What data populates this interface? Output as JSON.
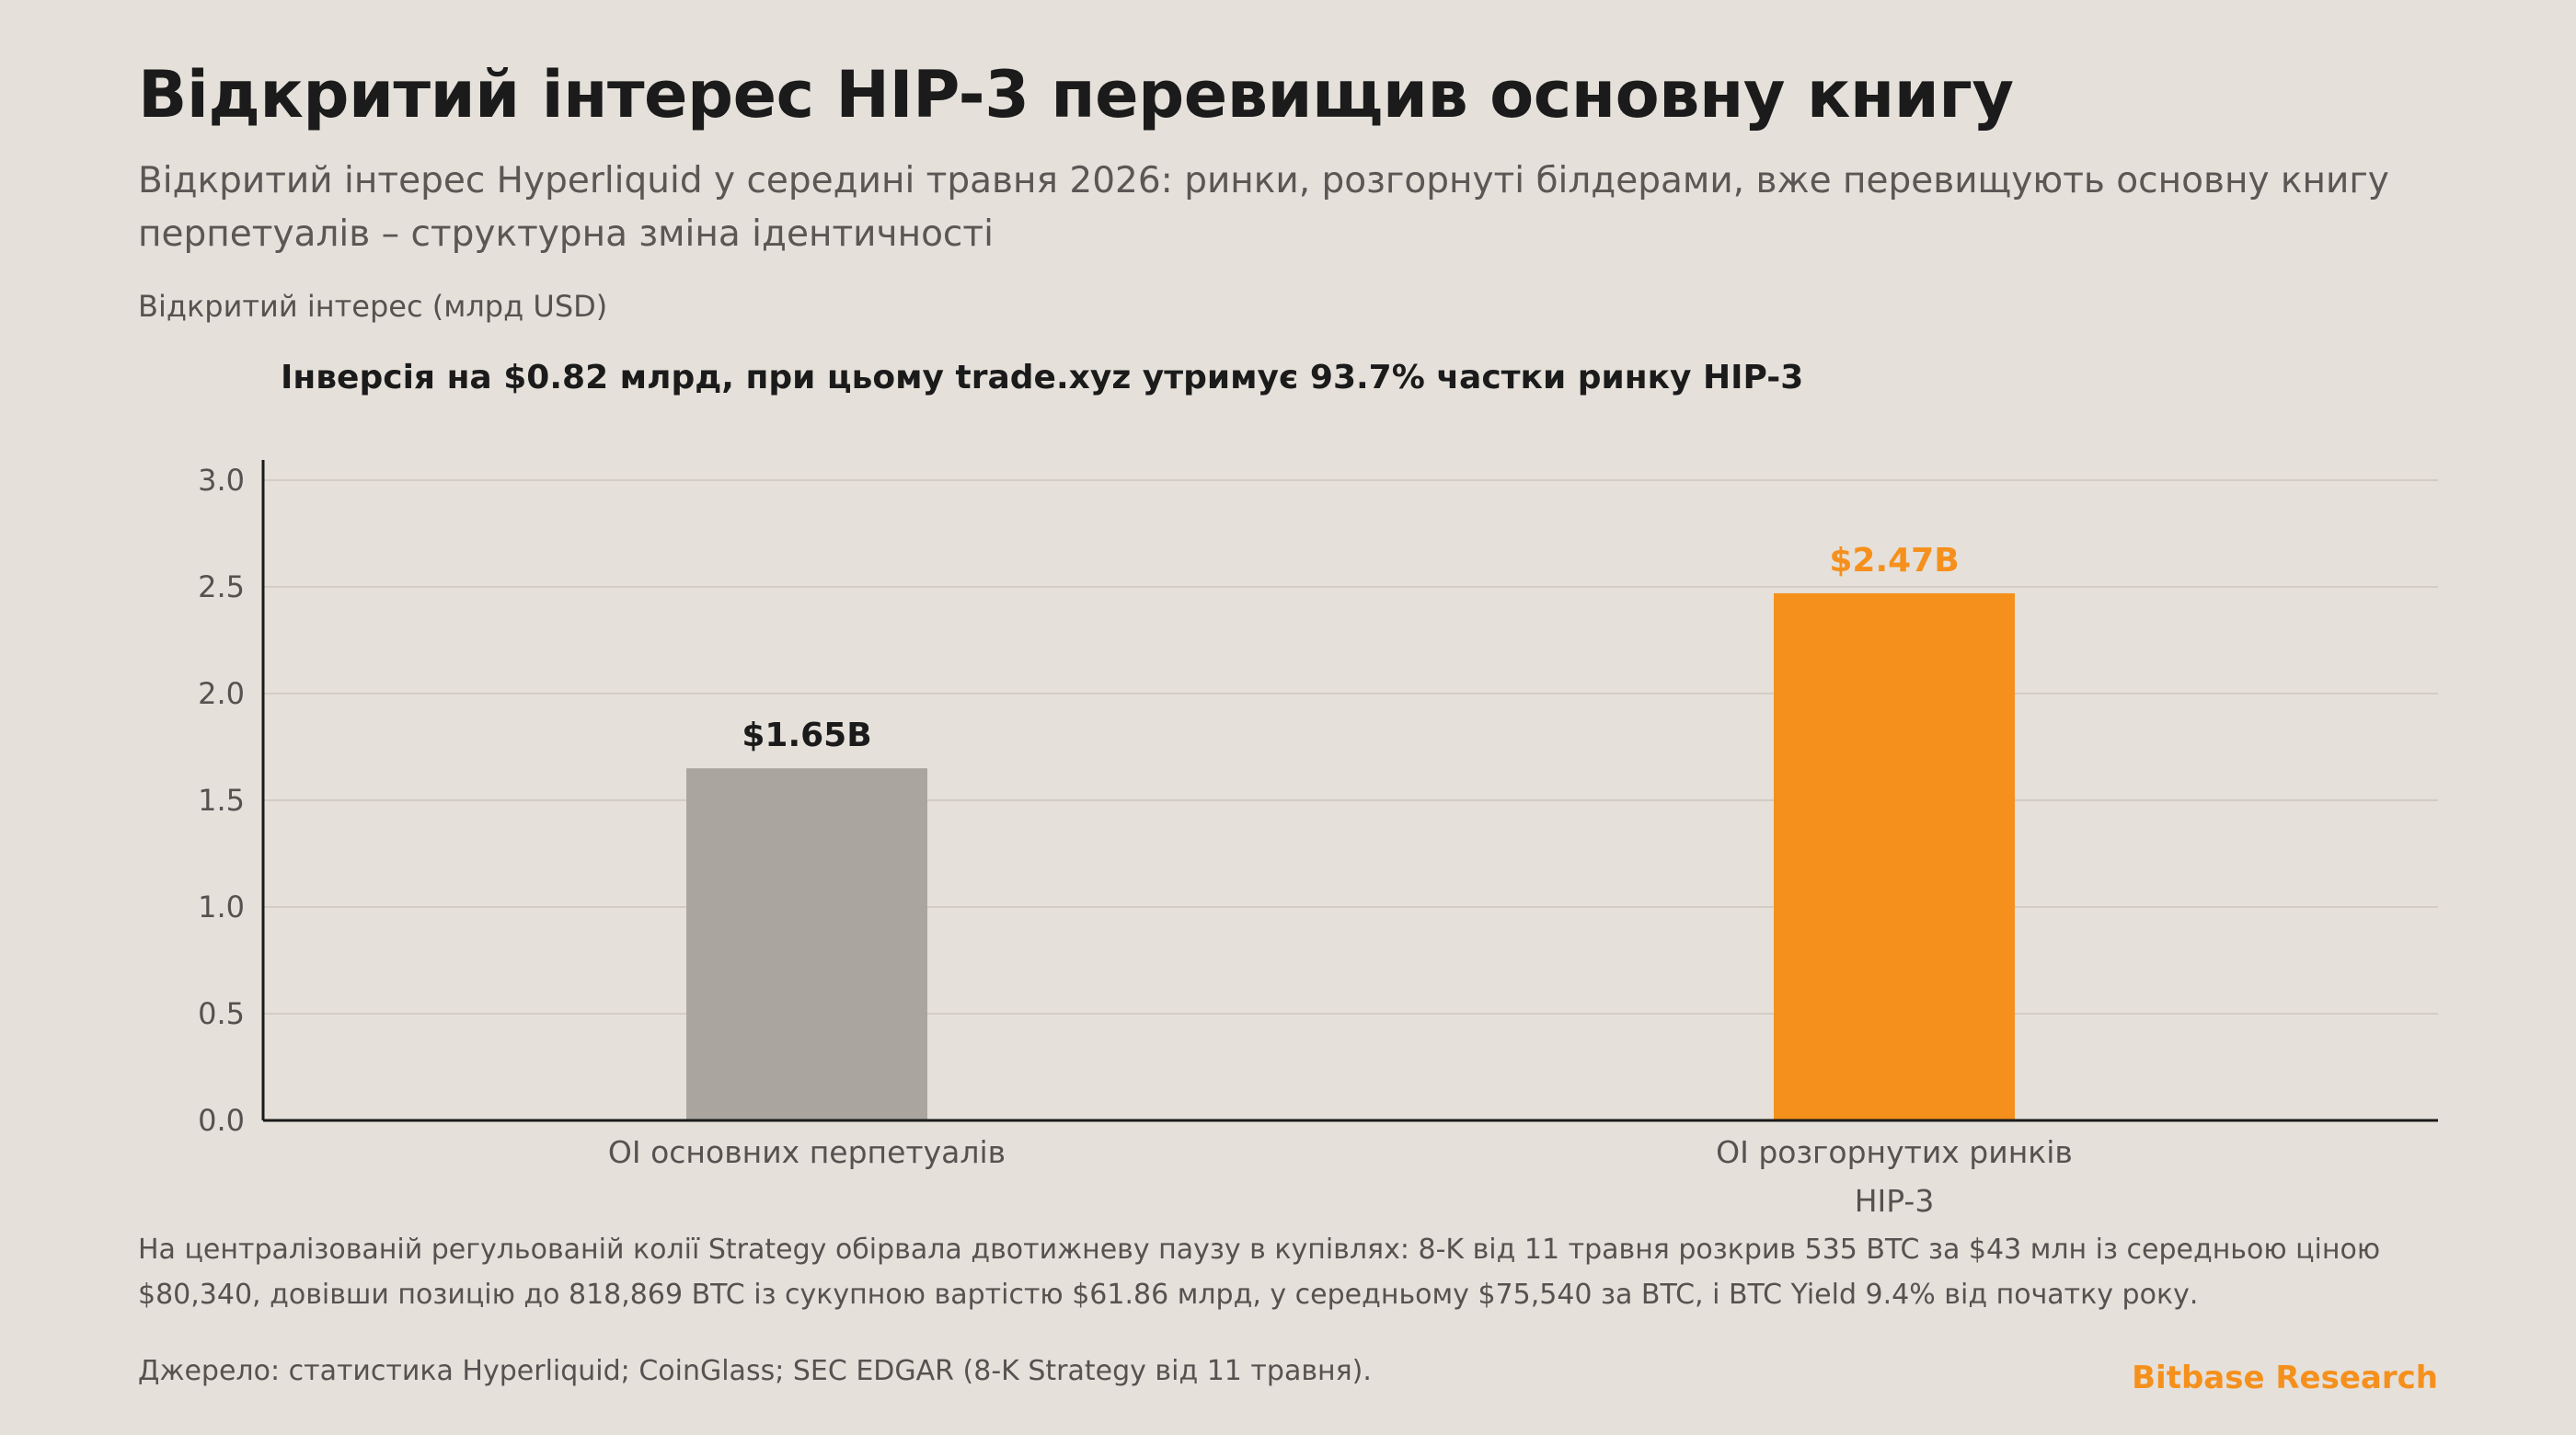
{
  "header": {
    "title": "Відкритий інтерес HIP-3 перевищив основну книгу",
    "subtitle": "Відкритий інтерес Hyperliquid у середині травня 2026: ринки, розгорнуті білдерами, вже перевищують основну книгу перпетуалів – структурна зміна ідентичності"
  },
  "chart_data": {
    "type": "bar",
    "ylabel": "Відкритий інтерес (млрд USD)",
    "annotation": "Інверсія на $0.82 млрд, при цьому trade.xyz утримує 93.7% частки ринку HIP-3",
    "categories": [
      "OI основних перпетуалів",
      "OI розгорнутих ринків HIP-3"
    ],
    "category_lines": [
      [
        "OI основних перпетуалів"
      ],
      [
        "OI розгорнутих ринків",
        "HIP-3"
      ]
    ],
    "values": [
      1.65,
      2.47
    ],
    "value_labels": [
      "$1.65B",
      "$2.47B"
    ],
    "colors": [
      "#aaa59f",
      "#f5901c"
    ],
    "value_label_colors": [
      "#1b1b1b",
      "#f5901c"
    ],
    "ylim": [
      0,
      3.0
    ],
    "yticks": [
      "0.0",
      "0.5",
      "1.0",
      "1.5",
      "2.0",
      "2.5",
      "3.0"
    ],
    "grid": true
  },
  "footer": {
    "note": "На централізованій регульованій колії Strategy обірвала двотижневу паузу в купівлях: 8-K від 11 травня розкрив 535 BTC за $43 млн із середньою ціною $80,340, довівши позицію до 818,869 BTC із сукупною вартістю $61.86 млрд, у середньому $75,540 за BTC, і BTC Yield 9.4% від початку року.",
    "source": "Джерело: статистика Hyperliquid; CoinGlass; SEC EDGAR (8-K Strategy від 11 травня).",
    "brand": "Bitbase Research",
    "brand_color": "#f5901c"
  }
}
